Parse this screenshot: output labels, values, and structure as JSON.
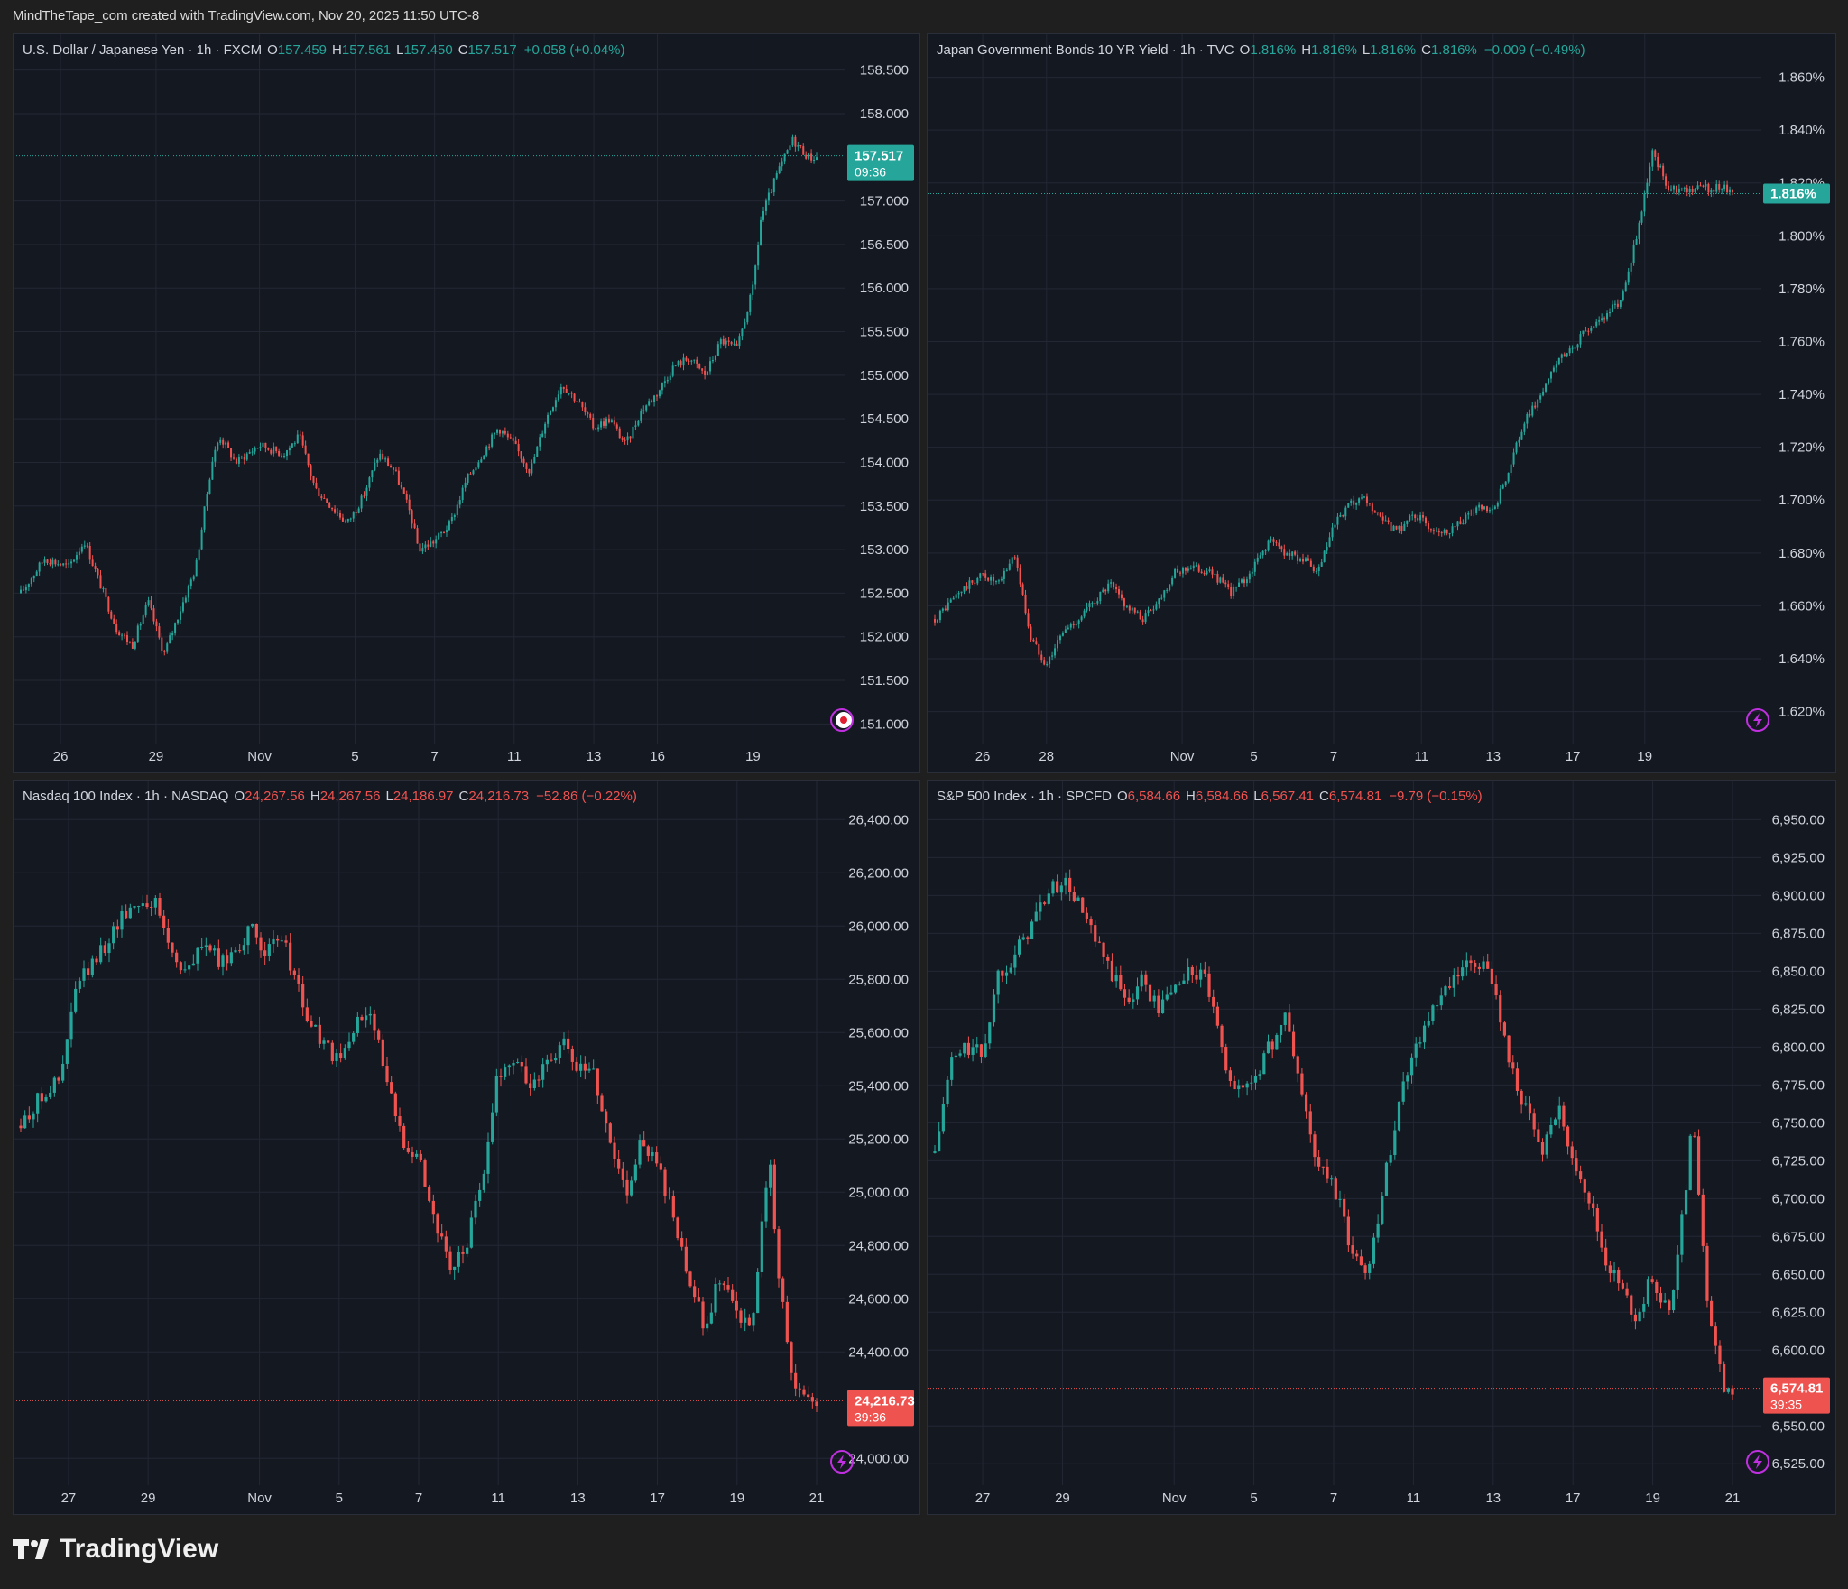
{
  "header": {
    "text": "MindTheTape_com created with TradingView.com, Nov 20, 2025 11:50 UTC-8"
  },
  "footer": {
    "brand": "TradingView"
  },
  "colors": {
    "up": "#26a69a",
    "down": "#ef5350",
    "bg": "#141821",
    "grid": "#232734",
    "panel_border": "#2a2e39",
    "event_icon": "#c030e0"
  },
  "chart_data": [
    {
      "type": "candlestick",
      "title": "U.S. Dollar / Japanese Yen · 1h · FXCM",
      "ohlc": {
        "O": "157.459",
        "H": "157.561",
        "L": "157.450",
        "C": "157.517",
        "change": "+0.058 (+0.04%)",
        "direction": "up"
      },
      "last_price": {
        "value": "157.517",
        "countdown": "09:36",
        "y": 157.517
      },
      "yticks": [
        "158.500",
        "158.000",
        "157.000",
        "156.500",
        "156.000",
        "155.500",
        "155.000",
        "154.500",
        "154.000",
        "153.500",
        "153.000",
        "152.500",
        "152.000",
        "151.500",
        "151.000"
      ],
      "ylim": [
        150.9,
        158.6
      ],
      "xticks": [
        "26",
        "29",
        "Nov",
        "5",
        "7",
        "11",
        "13",
        "16",
        "19"
      ],
      "xpos": [
        0.05,
        0.17,
        0.3,
        0.42,
        0.52,
        0.62,
        0.72,
        0.8,
        0.92
      ],
      "event_icon": "flag-icon",
      "path": [
        [
          0.0,
          152.5
        ],
        [
          0.03,
          152.9
        ],
        [
          0.06,
          152.8
        ],
        [
          0.08,
          153.1
        ],
        [
          0.1,
          152.6
        ],
        [
          0.12,
          152.1
        ],
        [
          0.14,
          151.9
        ],
        [
          0.16,
          152.4
        ],
        [
          0.18,
          151.8
        ],
        [
          0.2,
          152.3
        ],
        [
          0.22,
          152.8
        ],
        [
          0.24,
          154.0
        ],
        [
          0.25,
          154.3
        ],
        [
          0.27,
          154.0
        ],
        [
          0.3,
          154.2
        ],
        [
          0.33,
          154.1
        ],
        [
          0.35,
          154.3
        ],
        [
          0.37,
          153.7
        ],
        [
          0.39,
          153.5
        ],
        [
          0.41,
          153.3
        ],
        [
          0.43,
          153.6
        ],
        [
          0.45,
          154.1
        ],
        [
          0.47,
          153.9
        ],
        [
          0.49,
          153.4
        ],
        [
          0.5,
          153.0
        ],
        [
          0.52,
          153.1
        ],
        [
          0.54,
          153.3
        ],
        [
          0.56,
          153.8
        ],
        [
          0.58,
          154.1
        ],
        [
          0.6,
          154.4
        ],
        [
          0.62,
          154.2
        ],
        [
          0.64,
          153.9
        ],
        [
          0.66,
          154.5
        ],
        [
          0.68,
          154.9
        ],
        [
          0.7,
          154.7
        ],
        [
          0.72,
          154.4
        ],
        [
          0.74,
          154.5
        ],
        [
          0.76,
          154.2
        ],
        [
          0.78,
          154.6
        ],
        [
          0.8,
          154.8
        ],
        [
          0.82,
          155.1
        ],
        [
          0.84,
          155.2
        ],
        [
          0.86,
          155.0
        ],
        [
          0.88,
          155.4
        ],
        [
          0.9,
          155.3
        ],
        [
          0.92,
          156.0
        ],
        [
          0.93,
          156.8
        ],
        [
          0.95,
          157.3
        ],
        [
          0.97,
          157.7
        ],
        [
          0.99,
          157.5
        ]
      ]
    },
    {
      "type": "candlestick",
      "title": "Japan Government Bonds 10 YR Yield · 1h · TVC",
      "ohlc": {
        "O": "1.816%",
        "H": "1.816%",
        "L": "1.816%",
        "C": "1.816%",
        "change": "−0.009 (−0.49%)",
        "direction": "up"
      },
      "last_price": {
        "value": "1.816%",
        "countdown": "",
        "y": 1.816
      },
      "yticks": [
        "1.860%",
        "1.840%",
        "1.820%",
        "1.800%",
        "1.780%",
        "1.760%",
        "1.740%",
        "1.720%",
        "1.700%",
        "1.680%",
        "1.660%",
        "1.640%",
        "1.620%"
      ],
      "ylim": [
        1.612,
        1.866
      ],
      "xticks": [
        "26",
        "28",
        "Nov",
        "5",
        "7",
        "11",
        "13",
        "17",
        "19"
      ],
      "xpos": [
        0.06,
        0.14,
        0.31,
        0.4,
        0.5,
        0.61,
        0.7,
        0.8,
        0.89
      ],
      "event_icon": "lightning-icon",
      "path": [
        [
          0.0,
          1.655
        ],
        [
          0.03,
          1.665
        ],
        [
          0.06,
          1.672
        ],
        [
          0.08,
          1.668
        ],
        [
          0.1,
          1.68
        ],
        [
          0.12,
          1.648
        ],
        [
          0.14,
          1.638
        ],
        [
          0.16,
          1.65
        ],
        [
          0.18,
          1.655
        ],
        [
          0.2,
          1.662
        ],
        [
          0.22,
          1.668
        ],
        [
          0.24,
          1.66
        ],
        [
          0.26,
          1.655
        ],
        [
          0.28,
          1.662
        ],
        [
          0.3,
          1.672
        ],
        [
          0.32,
          1.675
        ],
        [
          0.35,
          1.672
        ],
        [
          0.37,
          1.665
        ],
        [
          0.39,
          1.67
        ],
        [
          0.42,
          1.685
        ],
        [
          0.44,
          1.68
        ],
        [
          0.46,
          1.678
        ],
        [
          0.48,
          1.672
        ],
        [
          0.5,
          1.69
        ],
        [
          0.52,
          1.698
        ],
        [
          0.54,
          1.7
        ],
        [
          0.56,
          1.692
        ],
        [
          0.58,
          1.688
        ],
        [
          0.6,
          1.695
        ],
        [
          0.62,
          1.69
        ],
        [
          0.64,
          1.688
        ],
        [
          0.66,
          1.692
        ],
        [
          0.68,
          1.697
        ],
        [
          0.7,
          1.695
        ],
        [
          0.72,
          1.712
        ],
        [
          0.74,
          1.73
        ],
        [
          0.76,
          1.74
        ],
        [
          0.78,
          1.752
        ],
        [
          0.8,
          1.758
        ],
        [
          0.82,
          1.765
        ],
        [
          0.84,
          1.77
        ],
        [
          0.86,
          1.775
        ],
        [
          0.88,
          1.8
        ],
        [
          0.9,
          1.832
        ],
        [
          0.92,
          1.818
        ]
      ]
    },
    {
      "type": "candlestick",
      "title": "Nasdaq 100 Index · 1h · NASDAQ",
      "ohlc": {
        "O": "24,267.56",
        "H": "24,267.56",
        "L": "24,186.97",
        "C": "24,216.73",
        "change": "−52.86 (−0.22%)",
        "direction": "down"
      },
      "last_price": {
        "value": "24,216.73",
        "countdown": "39:36",
        "y": 24216.73
      },
      "yticks": [
        "26,400.00",
        "26,200.00",
        "26,000.00",
        "25,800.00",
        "25,600.00",
        "25,400.00",
        "25,200.00",
        "25,000.00",
        "24,800.00",
        "24,600.00",
        "24,400.00",
        "24,000.00"
      ],
      "ylim": [
        23940,
        26445
      ],
      "xticks": [
        "27",
        "29",
        "Nov",
        "5",
        "7",
        "11",
        "13",
        "17",
        "19",
        "21"
      ],
      "xpos": [
        0.06,
        0.16,
        0.3,
        0.4,
        0.5,
        0.6,
        0.7,
        0.8,
        0.9,
        1.0
      ],
      "event_icon": "lightning-icon",
      "path": [
        [
          0.0,
          25250
        ],
        [
          0.03,
          25380
        ],
        [
          0.05,
          25420
        ],
        [
          0.07,
          25780
        ],
        [
          0.09,
          25850
        ],
        [
          0.11,
          25950
        ],
        [
          0.13,
          26050
        ],
        [
          0.15,
          26100
        ],
        [
          0.17,
          26080
        ],
        [
          0.19,
          25900
        ],
        [
          0.21,
          25820
        ],
        [
          0.23,
          25950
        ],
        [
          0.25,
          25850
        ],
        [
          0.27,
          25920
        ],
        [
          0.29,
          25980
        ],
        [
          0.31,
          25900
        ],
        [
          0.33,
          25950
        ],
        [
          0.36,
          25650
        ],
        [
          0.38,
          25560
        ],
        [
          0.4,
          25480
        ],
        [
          0.42,
          25620
        ],
        [
          0.44,
          25700
        ],
        [
          0.46,
          25400
        ],
        [
          0.48,
          25200
        ],
        [
          0.5,
          25140
        ],
        [
          0.52,
          24900
        ],
        [
          0.54,
          24700
        ],
        [
          0.56,
          24800
        ],
        [
          0.58,
          25050
        ],
        [
          0.6,
          25450
        ],
        [
          0.62,
          25500
        ],
        [
          0.64,
          25400
        ],
        [
          0.66,
          25480
        ],
        [
          0.68,
          25560
        ],
        [
          0.7,
          25460
        ],
        [
          0.72,
          25450
        ],
        [
          0.74,
          25200
        ],
        [
          0.76,
          25000
        ],
        [
          0.78,
          25200
        ],
        [
          0.8,
          25100
        ],
        [
          0.82,
          24900
        ],
        [
          0.84,
          24650
        ],
        [
          0.86,
          24500
        ],
        [
          0.88,
          24700
        ],
        [
          0.9,
          24550
        ],
        [
          0.92,
          24500
        ],
        [
          0.94,
          25150
        ],
        [
          0.95,
          24750
        ],
        [
          0.97,
          24300
        ],
        [
          0.99,
          24220
        ]
      ]
    },
    {
      "type": "candlestick",
      "title": "S&P 500 Index · 1h · SPCFD",
      "ohlc": {
        "O": "6,584.66",
        "H": "6,584.66",
        "L": "6,567.41",
        "C": "6,574.81",
        "change": "−9.79 (−0.15%)",
        "direction": "down"
      },
      "last_price": {
        "value": "6,574.81",
        "countdown": "39:35",
        "y": 6574.81
      },
      "yticks": [
        "6,950.00",
        "6,925.00",
        "6,900.00",
        "6,875.00",
        "6,850.00",
        "6,825.00",
        "6,800.00",
        "6,775.00",
        "6,750.00",
        "6,725.00",
        "6,700.00",
        "6,675.00",
        "6,650.00",
        "6,625.00",
        "6,600.00",
        "6,550.00",
        "6,525.00"
      ],
      "ylim": [
        6518,
        6958
      ],
      "xticks": [
        "27",
        "29",
        "Nov",
        "5",
        "7",
        "11",
        "13",
        "17",
        "19",
        "21"
      ],
      "xpos": [
        0.06,
        0.16,
        0.3,
        0.4,
        0.5,
        0.6,
        0.7,
        0.8,
        0.9,
        1.0
      ],
      "event_icon": "lightning-icon",
      "path": [
        [
          0.0,
          6730
        ],
        [
          0.02,
          6790
        ],
        [
          0.04,
          6800
        ],
        [
          0.06,
          6795
        ],
        [
          0.08,
          6850
        ],
        [
          0.1,
          6860
        ],
        [
          0.12,
          6880
        ],
        [
          0.14,
          6900
        ],
        [
          0.16,
          6910
        ],
        [
          0.18,
          6895
        ],
        [
          0.2,
          6870
        ],
        [
          0.22,
          6850
        ],
        [
          0.24,
          6830
        ],
        [
          0.26,
          6845
        ],
        [
          0.28,
          6825
        ],
        [
          0.3,
          6840
        ],
        [
          0.32,
          6850
        ],
        [
          0.34,
          6845
        ],
        [
          0.36,
          6795
        ],
        [
          0.38,
          6770
        ],
        [
          0.4,
          6780
        ],
        [
          0.42,
          6800
        ],
        [
          0.44,
          6820
        ],
        [
          0.46,
          6770
        ],
        [
          0.48,
          6720
        ],
        [
          0.5,
          6710
        ],
        [
          0.52,
          6670
        ],
        [
          0.54,
          6650
        ],
        [
          0.56,
          6700
        ],
        [
          0.58,
          6760
        ],
        [
          0.6,
          6800
        ],
        [
          0.62,
          6820
        ],
        [
          0.64,
          6835
        ],
        [
          0.66,
          6850
        ],
        [
          0.68,
          6855
        ],
        [
          0.7,
          6845
        ],
        [
          0.72,
          6790
        ],
        [
          0.74,
          6760
        ],
        [
          0.76,
          6730
        ],
        [
          0.78,
          6760
        ],
        [
          0.8,
          6730
        ],
        [
          0.82,
          6700
        ],
        [
          0.84,
          6660
        ],
        [
          0.86,
          6640
        ],
        [
          0.88,
          6620
        ],
        [
          0.9,
          6650
        ],
        [
          0.92,
          6620
        ],
        [
          0.94,
          6700
        ],
        [
          0.95,
          6760
        ],
        [
          0.97,
          6620
        ],
        [
          0.99,
          6575
        ]
      ]
    }
  ]
}
